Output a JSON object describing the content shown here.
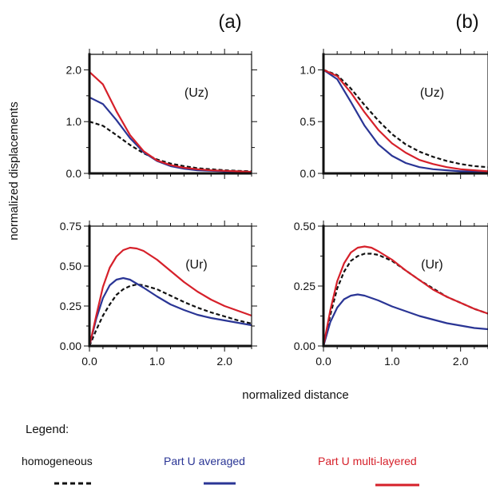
{
  "figure": {
    "ylabel": "normalized displacements",
    "xlabel": "normalized distance",
    "panel_labels": [
      "(a)",
      "(b)"
    ]
  },
  "legend": {
    "title": "Legend:",
    "items": [
      {
        "label": "homogeneous",
        "color": "#111111",
        "style": "dashed"
      },
      {
        "label": "Part U averaged",
        "color": "#2a3595",
        "style": "solid"
      },
      {
        "label": "Part U multi-layered",
        "color": "#d6202a",
        "style": "solid"
      }
    ]
  },
  "chart_data": [
    {
      "type": "line",
      "panel": "(a)",
      "annotation": "(Uz)",
      "xlim": [
        0,
        2.4
      ],
      "ylim": [
        0,
        2.3
      ],
      "xticks": [
        0,
        1,
        2
      ],
      "yticks": [
        0,
        1,
        2
      ],
      "yticklabels": [
        "0.0",
        "1.0",
        "2.0"
      ],
      "xticklabels": [],
      "x": [
        0,
        0.2,
        0.4,
        0.6,
        0.8,
        1.0,
        1.2,
        1.4,
        1.6,
        1.8,
        2.0,
        2.2,
        2.4
      ],
      "series": [
        {
          "name": "homogeneous",
          "values": [
            1.0,
            0.92,
            0.74,
            0.55,
            0.39,
            0.27,
            0.19,
            0.14,
            0.1,
            0.08,
            0.06,
            0.05,
            0.04
          ]
        },
        {
          "name": "Part U averaged",
          "values": [
            1.47,
            1.34,
            1.03,
            0.68,
            0.41,
            0.24,
            0.14,
            0.09,
            0.06,
            0.05,
            0.04,
            0.03,
            0.03
          ]
        },
        {
          "name": "Part U multi-layered",
          "values": [
            1.96,
            1.72,
            1.2,
            0.74,
            0.43,
            0.25,
            0.16,
            0.11,
            0.08,
            0.06,
            0.05,
            0.04,
            0.03
          ]
        }
      ]
    },
    {
      "type": "line",
      "panel": "(b)",
      "annotation": "(Uz)",
      "xlim": [
        0,
        2.4
      ],
      "ylim": [
        0,
        1.15
      ],
      "xticks": [
        0,
        1,
        2
      ],
      "yticks": [
        0,
        0.5,
        1.0
      ],
      "yticklabels": [
        "0.0",
        "0.5",
        "1.0"
      ],
      "xticklabels": [],
      "x": [
        0,
        0.2,
        0.4,
        0.6,
        0.8,
        1.0,
        1.2,
        1.4,
        1.6,
        1.8,
        2.0,
        2.2,
        2.4
      ],
      "series": [
        {
          "name": "homogeneous",
          "values": [
            1.0,
            0.95,
            0.82,
            0.66,
            0.51,
            0.38,
            0.28,
            0.21,
            0.16,
            0.12,
            0.09,
            0.07,
            0.06
          ]
        },
        {
          "name": "Part U averaged",
          "values": [
            1.0,
            0.91,
            0.69,
            0.46,
            0.28,
            0.17,
            0.1,
            0.06,
            0.04,
            0.03,
            0.02,
            0.02,
            0.01
          ]
        },
        {
          "name": "Part U multi-layered",
          "values": [
            1.0,
            0.94,
            0.78,
            0.59,
            0.42,
            0.29,
            0.2,
            0.13,
            0.09,
            0.06,
            0.04,
            0.03,
            0.02
          ]
        }
      ]
    },
    {
      "type": "line",
      "panel": "(a)",
      "annotation": "(Ur)",
      "xlim": [
        0,
        2.4
      ],
      "ylim": [
        0,
        0.75
      ],
      "xticks": [
        0,
        1,
        2
      ],
      "yticks": [
        0,
        0.25,
        0.5,
        0.75
      ],
      "yticklabels": [
        "0.00",
        "0.25",
        "0.50",
        "0.75"
      ],
      "xticklabels": [
        "0.0",
        "1.0",
        "2.0"
      ],
      "x": [
        0,
        0.1,
        0.2,
        0.3,
        0.4,
        0.5,
        0.6,
        0.7,
        0.8,
        1.0,
        1.2,
        1.4,
        1.6,
        1.8,
        2.0,
        2.2,
        2.4
      ],
      "series": [
        {
          "name": "homogeneous",
          "values": [
            0,
            0.1,
            0.19,
            0.26,
            0.32,
            0.355,
            0.375,
            0.385,
            0.38,
            0.355,
            0.315,
            0.275,
            0.24,
            0.21,
            0.185,
            0.16,
            0.14
          ]
        },
        {
          "name": "Part U averaged",
          "values": [
            0,
            0.17,
            0.3,
            0.38,
            0.415,
            0.425,
            0.415,
            0.39,
            0.365,
            0.31,
            0.26,
            0.225,
            0.195,
            0.175,
            0.16,
            0.145,
            0.13
          ]
        },
        {
          "name": "Part U multi-layered",
          "values": [
            0,
            0.19,
            0.37,
            0.49,
            0.56,
            0.6,
            0.615,
            0.61,
            0.595,
            0.54,
            0.47,
            0.4,
            0.34,
            0.29,
            0.25,
            0.22,
            0.19
          ]
        }
      ]
    },
    {
      "type": "line",
      "panel": "(b)",
      "annotation": "(Ur)",
      "xlim": [
        0,
        2.4
      ],
      "ylim": [
        0,
        0.5
      ],
      "xticks": [
        0,
        1,
        2
      ],
      "yticks": [
        0,
        0.25,
        0.5
      ],
      "yticklabels": [
        "0.00",
        "0.25",
        "0.50"
      ],
      "xticklabels": [
        "0.0",
        "1.0",
        "2.0"
      ],
      "x": [
        0,
        0.1,
        0.2,
        0.3,
        0.4,
        0.5,
        0.6,
        0.7,
        0.8,
        1.0,
        1.2,
        1.4,
        1.6,
        1.8,
        2.0,
        2.2,
        2.4
      ],
      "series": [
        {
          "name": "homogeneous",
          "values": [
            0,
            0.13,
            0.24,
            0.31,
            0.355,
            0.375,
            0.385,
            0.385,
            0.38,
            0.355,
            0.315,
            0.275,
            0.24,
            0.205,
            0.18,
            0.155,
            0.135
          ]
        },
        {
          "name": "Part U averaged",
          "values": [
            0,
            0.1,
            0.16,
            0.195,
            0.21,
            0.215,
            0.21,
            0.2,
            0.19,
            0.165,
            0.145,
            0.125,
            0.11,
            0.095,
            0.085,
            0.075,
            0.07
          ]
        },
        {
          "name": "Part U multi-layered",
          "values": [
            0,
            0.15,
            0.27,
            0.345,
            0.39,
            0.41,
            0.415,
            0.41,
            0.395,
            0.36,
            0.315,
            0.275,
            0.235,
            0.205,
            0.18,
            0.155,
            0.135
          ]
        }
      ]
    }
  ]
}
